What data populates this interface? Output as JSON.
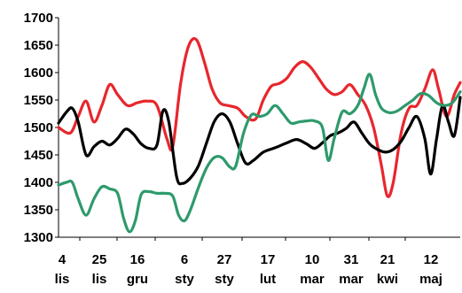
{
  "chart_data": {
    "type": "line",
    "title": "",
    "xlabel": "",
    "ylabel": "",
    "ylim": [
      1300,
      1700
    ],
    "yticks": [
      1300,
      1350,
      1400,
      1450,
      1500,
      1550,
      1600,
      1650,
      1700
    ],
    "grid": false,
    "legend": "none",
    "x_tick_labels": [
      {
        "day": "4",
        "month": "lis"
      },
      {
        "day": "25",
        "month": "lis"
      },
      {
        "day": "16",
        "month": "gru"
      },
      {
        "day": "6",
        "month": "sty"
      },
      {
        "day": "27",
        "month": "sty"
      },
      {
        "day": "17",
        "month": "lut"
      },
      {
        "day": "10",
        "month": "mar"
      },
      {
        "day": "31",
        "month": "mar"
      },
      {
        "day": "21",
        "month": "kwi"
      },
      {
        "day": "12",
        "month": "maj"
      }
    ],
    "x_range": [
      0,
      204
    ],
    "series": [
      {
        "color": "#e8262d",
        "points": [
          [
            0,
            1500
          ],
          [
            6,
            1490
          ],
          [
            10,
            1520
          ],
          [
            14,
            1548
          ],
          [
            18,
            1510
          ],
          [
            22,
            1540
          ],
          [
            26,
            1578
          ],
          [
            30,
            1560
          ],
          [
            35,
            1540
          ],
          [
            40,
            1545
          ],
          [
            45,
            1548
          ],
          [
            50,
            1540
          ],
          [
            55,
            1480
          ],
          [
            58,
            1465
          ],
          [
            62,
            1580
          ],
          [
            66,
            1648
          ],
          [
            70,
            1660
          ],
          [
            74,
            1620
          ],
          [
            78,
            1570
          ],
          [
            82,
            1545
          ],
          [
            86,
            1540
          ],
          [
            91,
            1535
          ],
          [
            95,
            1520
          ],
          [
            100,
            1515
          ],
          [
            104,
            1550
          ],
          [
            108,
            1575
          ],
          [
            112,
            1580
          ],
          [
            116,
            1590
          ],
          [
            120,
            1610
          ],
          [
            124,
            1620
          ],
          [
            128,
            1610
          ],
          [
            132,
            1590
          ],
          [
            136,
            1570
          ],
          [
            140,
            1560
          ],
          [
            144,
            1565
          ],
          [
            148,
            1578
          ],
          [
            152,
            1560
          ],
          [
            156,
            1540
          ],
          [
            160,
            1500
          ],
          [
            164,
            1430
          ],
          [
            167,
            1375
          ],
          [
            170,
            1400
          ],
          [
            174,
            1490
          ],
          [
            178,
            1535
          ],
          [
            182,
            1540
          ],
          [
            186,
            1570
          ],
          [
            190,
            1605
          ],
          [
            193,
            1570
          ],
          [
            197,
            1520
          ],
          [
            201,
            1560
          ],
          [
            204,
            1582
          ]
        ]
      },
      {
        "color": "#000000",
        "points": [
          [
            0,
            1508
          ],
          [
            4,
            1528
          ],
          [
            7,
            1535
          ],
          [
            10,
            1510
          ],
          [
            14,
            1450
          ],
          [
            18,
            1465
          ],
          [
            22,
            1475
          ],
          [
            26,
            1468
          ],
          [
            30,
            1480
          ],
          [
            34,
            1497
          ],
          [
            38,
            1488
          ],
          [
            42,
            1470
          ],
          [
            46,
            1462
          ],
          [
            50,
            1468
          ],
          [
            53,
            1530
          ],
          [
            56,
            1510
          ],
          [
            60,
            1410
          ],
          [
            63,
            1398
          ],
          [
            67,
            1408
          ],
          [
            71,
            1430
          ],
          [
            75,
            1470
          ],
          [
            79,
            1510
          ],
          [
            83,
            1525
          ],
          [
            87,
            1510
          ],
          [
            91,
            1470
          ],
          [
            95,
            1435
          ],
          [
            99,
            1440
          ],
          [
            104,
            1455
          ],
          [
            110,
            1463
          ],
          [
            116,
            1472
          ],
          [
            121,
            1478
          ],
          [
            126,
            1470
          ],
          [
            130,
            1462
          ],
          [
            134,
            1472
          ],
          [
            138,
            1485
          ],
          [
            142,
            1490
          ],
          [
            146,
            1498
          ],
          [
            150,
            1510
          ],
          [
            154,
            1490
          ],
          [
            158,
            1470
          ],
          [
            162,
            1460
          ],
          [
            166,
            1455
          ],
          [
            170,
            1460
          ],
          [
            174,
            1475
          ],
          [
            178,
            1500
          ],
          [
            182,
            1520
          ],
          [
            186,
            1480
          ],
          [
            189,
            1415
          ],
          [
            192,
            1480
          ],
          [
            195,
            1540
          ],
          [
            198,
            1510
          ],
          [
            201,
            1485
          ],
          [
            204,
            1555
          ]
        ]
      },
      {
        "color": "#2e9a6c",
        "points": [
          [
            0,
            1395
          ],
          [
            4,
            1400
          ],
          [
            7,
            1400
          ],
          [
            10,
            1370
          ],
          [
            14,
            1340
          ],
          [
            18,
            1370
          ],
          [
            22,
            1392
          ],
          [
            26,
            1388
          ],
          [
            30,
            1380
          ],
          [
            33,
            1335
          ],
          [
            36,
            1310
          ],
          [
            39,
            1330
          ],
          [
            42,
            1378
          ],
          [
            46,
            1383
          ],
          [
            50,
            1380
          ],
          [
            54,
            1380
          ],
          [
            58,
            1375
          ],
          [
            61,
            1340
          ],
          [
            64,
            1330
          ],
          [
            67,
            1350
          ],
          [
            71,
            1390
          ],
          [
            75,
            1425
          ],
          [
            79,
            1445
          ],
          [
            83,
            1445
          ],
          [
            87,
            1428
          ],
          [
            90,
            1430
          ],
          [
            94,
            1490
          ],
          [
            98,
            1523
          ],
          [
            102,
            1520
          ],
          [
            106,
            1525
          ],
          [
            110,
            1540
          ],
          [
            114,
            1525
          ],
          [
            118,
            1508
          ],
          [
            122,
            1510
          ],
          [
            126,
            1512
          ],
          [
            130,
            1512
          ],
          [
            134,
            1500
          ],
          [
            137,
            1440
          ],
          [
            140,
            1480
          ],
          [
            144,
            1528
          ],
          [
            148,
            1525
          ],
          [
            152,
            1540
          ],
          [
            155,
            1570
          ],
          [
            158,
            1597
          ],
          [
            161,
            1560
          ],
          [
            164,
            1535
          ],
          [
            168,
            1527
          ],
          [
            172,
            1530
          ],
          [
            176,
            1540
          ],
          [
            180,
            1550
          ],
          [
            184,
            1562
          ],
          [
            188,
            1558
          ],
          [
            192,
            1545
          ],
          [
            196,
            1540
          ],
          [
            200,
            1545
          ],
          [
            204,
            1565
          ]
        ]
      }
    ]
  }
}
